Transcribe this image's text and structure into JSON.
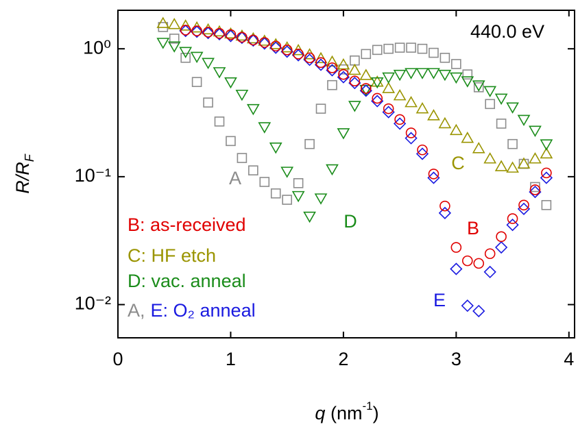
{
  "chart_data": {
    "type": "scatter",
    "xlabel": {
      "main": "q",
      "rest": " (nm",
      "sup": "-1",
      "end": ")"
    },
    "ylabel": {
      "main": "R/R",
      "sub": "F"
    },
    "xlim": [
      0,
      4.05
    ],
    "ylim": [
      0.0055,
      2
    ],
    "yscale": "log",
    "xticks": [
      0,
      1,
      2,
      3,
      4
    ],
    "yticks": [
      {
        "value": 1,
        "label": "10⁰"
      },
      {
        "value": 0.1,
        "label": "10⁻¹"
      },
      {
        "value": 0.01,
        "label": "10⁻²"
      }
    ],
    "annotations": [
      {
        "text": "440.0 eV",
        "color": "#000000"
      },
      {
        "text": "A",
        "color": "#8c8c8c"
      },
      {
        "text": "C",
        "color": "#9a9400"
      },
      {
        "text": "D",
        "color": "#1a8c1a"
      },
      {
        "text": "B",
        "color": "#e00000"
      },
      {
        "text": "E",
        "color": "#1a1ae0"
      }
    ],
    "series": [
      {
        "name": "A,",
        "color": "#8c8c8c",
        "marker": "square",
        "x": [
          0.4,
          0.5,
          0.6,
          0.7,
          0.8,
          0.9,
          1.0,
          1.1,
          1.2,
          1.3,
          1.4,
          1.5,
          1.6,
          1.7,
          1.8,
          1.9,
          2.0,
          2.1,
          2.2,
          2.3,
          2.4,
          2.5,
          2.6,
          2.7,
          2.8,
          2.9,
          3.0,
          3.1,
          3.2,
          3.3,
          3.4,
          3.5,
          3.6,
          3.7,
          3.8
        ],
        "values": [
          1.48,
          1.2,
          0.85,
          0.55,
          0.38,
          0.27,
          0.19,
          0.14,
          0.112,
          0.091,
          0.074,
          0.066,
          0.089,
          0.18,
          0.34,
          0.52,
          0.69,
          0.81,
          0.91,
          0.98,
          1.0,
          1.02,
          1.02,
          1.0,
          0.93,
          0.85,
          0.76,
          0.63,
          0.5,
          0.37,
          0.26,
          0.18,
          0.126,
          0.083,
          0.06
        ]
      },
      {
        "name": "C: HF etch",
        "color": "#9a9400",
        "marker": "triangle-up",
        "x": [
          0.4,
          0.5,
          0.6,
          0.7,
          0.8,
          0.9,
          1.0,
          1.1,
          1.2,
          1.3,
          1.4,
          1.5,
          1.6,
          1.7,
          1.8,
          1.9,
          2.0,
          2.1,
          2.2,
          2.3,
          2.4,
          2.5,
          2.6,
          2.7,
          2.8,
          2.9,
          3.0,
          3.1,
          3.2,
          3.3,
          3.4,
          3.5,
          3.6,
          3.7,
          3.8
        ],
        "values": [
          1.58,
          1.55,
          1.51,
          1.46,
          1.41,
          1.36,
          1.31,
          1.26,
          1.2,
          1.15,
          1.08,
          1.02,
          0.97,
          0.9,
          0.84,
          0.79,
          0.75,
          0.68,
          0.62,
          0.55,
          0.49,
          0.43,
          0.38,
          0.34,
          0.3,
          0.26,
          0.23,
          0.2,
          0.166,
          0.138,
          0.12,
          0.117,
          0.126,
          0.138,
          0.151
        ]
      },
      {
        "name": "D: vac. anneal",
        "color": "#1a8c1a",
        "marker": "triangle-down",
        "x": [
          0.4,
          0.5,
          0.6,
          0.7,
          0.8,
          0.9,
          1.0,
          1.1,
          1.2,
          1.3,
          1.4,
          1.5,
          1.6,
          1.7,
          1.8,
          1.9,
          2.0,
          2.1,
          2.2,
          2.3,
          2.4,
          2.5,
          2.6,
          2.7,
          2.8,
          2.9,
          3.0,
          3.1,
          3.2,
          3.3,
          3.4,
          3.5,
          3.6,
          3.7,
          3.8
        ],
        "values": [
          1.12,
          1.05,
          0.95,
          0.87,
          0.78,
          0.66,
          0.55,
          0.44,
          0.34,
          0.245,
          0.17,
          0.11,
          0.071,
          0.049,
          0.068,
          0.115,
          0.22,
          0.36,
          0.48,
          0.55,
          0.6,
          0.63,
          0.65,
          0.65,
          0.65,
          0.63,
          0.6,
          0.56,
          0.52,
          0.47,
          0.41,
          0.35,
          0.28,
          0.23,
          0.18
        ]
      },
      {
        "name": "E: O₂ anneal",
        "color": "#1a1ae0",
        "marker": "diamond",
        "x": [
          0.6,
          0.7,
          0.8,
          0.9,
          1.0,
          1.1,
          1.2,
          1.3,
          1.4,
          1.5,
          1.6,
          1.7,
          1.8,
          1.9,
          2.0,
          2.1,
          2.2,
          2.3,
          2.4,
          2.5,
          2.6,
          2.7,
          2.8,
          2.9,
          3.0,
          3.1,
          3.2,
          3.3,
          3.4,
          3.5,
          3.6,
          3.7,
          3.8
        ],
        "values": [
          1.38,
          1.36,
          1.33,
          1.3,
          1.26,
          1.22,
          1.16,
          1.1,
          1.02,
          0.95,
          0.89,
          0.82,
          0.75,
          0.68,
          0.6,
          0.54,
          0.47,
          0.39,
          0.32,
          0.26,
          0.2,
          0.151,
          0.098,
          0.052,
          0.019,
          0.0098,
          0.0089,
          0.018,
          0.028,
          0.042,
          0.056,
          0.076,
          0.098
        ]
      },
      {
        "name": "B: as-received",
        "color": "#e00000",
        "marker": "circle",
        "x": [
          0.6,
          0.7,
          0.8,
          0.9,
          1.0,
          1.1,
          1.2,
          1.3,
          1.4,
          1.5,
          1.6,
          1.7,
          1.8,
          1.9,
          2.0,
          2.1,
          2.2,
          2.3,
          2.4,
          2.5,
          2.6,
          2.7,
          2.8,
          2.9,
          3.0,
          3.1,
          3.2,
          3.3,
          3.4,
          3.5,
          3.6,
          3.7,
          3.8
        ],
        "values": [
          1.4,
          1.38,
          1.35,
          1.32,
          1.29,
          1.23,
          1.17,
          1.12,
          1.05,
          0.98,
          0.91,
          0.85,
          0.78,
          0.71,
          0.63,
          0.56,
          0.49,
          0.41,
          0.34,
          0.28,
          0.22,
          0.162,
          0.105,
          0.059,
          0.028,
          0.022,
          0.021,
          0.025,
          0.034,
          0.047,
          0.06,
          0.079,
          0.107
        ]
      }
    ]
  }
}
